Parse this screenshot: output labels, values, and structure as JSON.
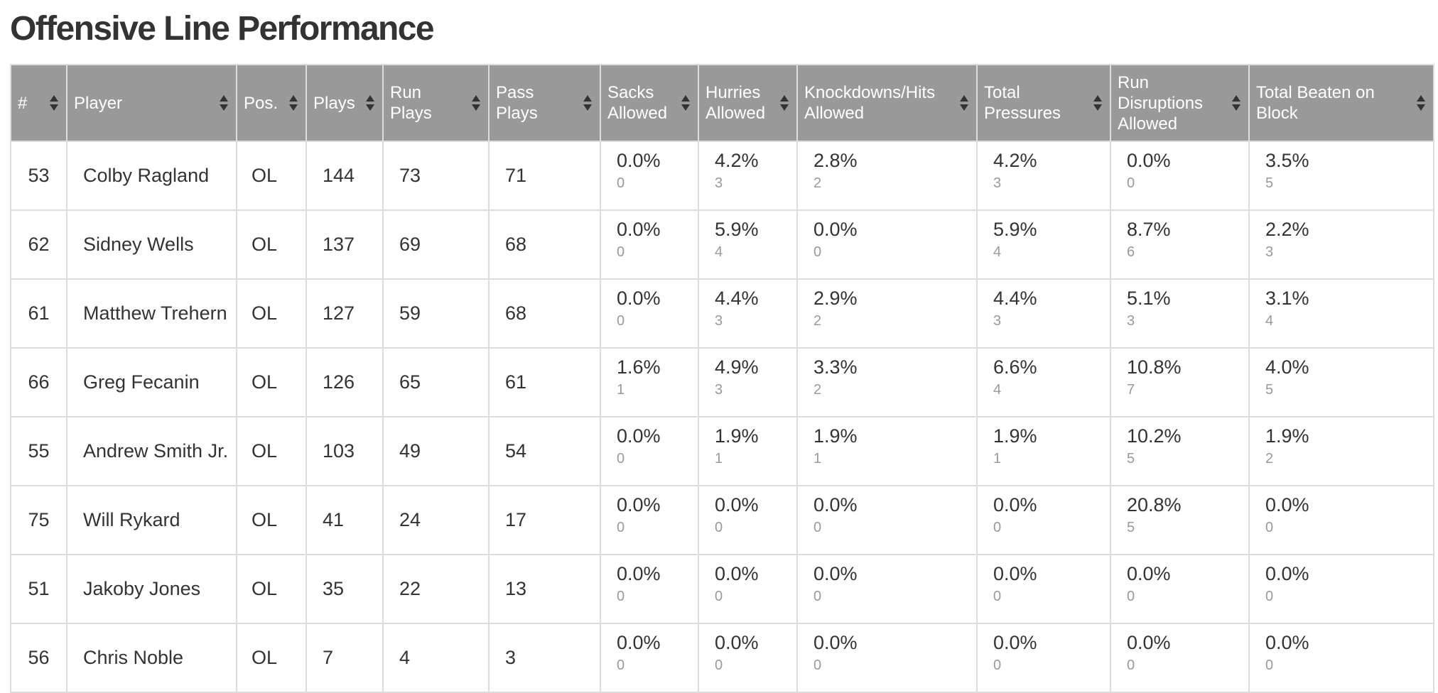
{
  "title": "Offensive Line Performance",
  "columns": [
    {
      "label": "#"
    },
    {
      "label": "Player"
    },
    {
      "label": "Pos."
    },
    {
      "label": "Plays"
    },
    {
      "label": "Run Plays"
    },
    {
      "label": "Pass Plays"
    },
    {
      "label": "Sacks Allowed"
    },
    {
      "label": "Hurries Allowed"
    },
    {
      "label": "Knockdowns/Hits Allowed"
    },
    {
      "label": "Total Pressures"
    },
    {
      "label": "Run Disruptions Allowed"
    },
    {
      "label": "Total Beaten on Block"
    }
  ],
  "rows": [
    {
      "num": "53",
      "player": "Colby Ragland",
      "pos": "OL",
      "plays": "144",
      "run": "73",
      "pass": "71",
      "stats": [
        {
          "pct": "0.0%",
          "count": "0"
        },
        {
          "pct": "4.2%",
          "count": "3"
        },
        {
          "pct": "2.8%",
          "count": "2"
        },
        {
          "pct": "4.2%",
          "count": "3"
        },
        {
          "pct": "0.0%",
          "count": "0"
        },
        {
          "pct": "3.5%",
          "count": "5"
        }
      ]
    },
    {
      "num": "62",
      "player": "Sidney Wells",
      "pos": "OL",
      "plays": "137",
      "run": "69",
      "pass": "68",
      "stats": [
        {
          "pct": "0.0%",
          "count": "0"
        },
        {
          "pct": "5.9%",
          "count": "4"
        },
        {
          "pct": "0.0%",
          "count": "0"
        },
        {
          "pct": "5.9%",
          "count": "4"
        },
        {
          "pct": "8.7%",
          "count": "6"
        },
        {
          "pct": "2.2%",
          "count": "3"
        }
      ]
    },
    {
      "num": "61",
      "player": "Matthew Trehern",
      "pos": "OL",
      "plays": "127",
      "run": "59",
      "pass": "68",
      "stats": [
        {
          "pct": "0.0%",
          "count": "0"
        },
        {
          "pct": "4.4%",
          "count": "3"
        },
        {
          "pct": "2.9%",
          "count": "2"
        },
        {
          "pct": "4.4%",
          "count": "3"
        },
        {
          "pct": "5.1%",
          "count": "3"
        },
        {
          "pct": "3.1%",
          "count": "4"
        }
      ]
    },
    {
      "num": "66",
      "player": "Greg Fecanin",
      "pos": "OL",
      "plays": "126",
      "run": "65",
      "pass": "61",
      "stats": [
        {
          "pct": "1.6%",
          "count": "1"
        },
        {
          "pct": "4.9%",
          "count": "3"
        },
        {
          "pct": "3.3%",
          "count": "2"
        },
        {
          "pct": "6.6%",
          "count": "4"
        },
        {
          "pct": "10.8%",
          "count": "7"
        },
        {
          "pct": "4.0%",
          "count": "5"
        }
      ]
    },
    {
      "num": "55",
      "player": "Andrew Smith Jr.",
      "pos": "OL",
      "plays": "103",
      "run": "49",
      "pass": "54",
      "stats": [
        {
          "pct": "0.0%",
          "count": "0"
        },
        {
          "pct": "1.9%",
          "count": "1"
        },
        {
          "pct": "1.9%",
          "count": "1"
        },
        {
          "pct": "1.9%",
          "count": "1"
        },
        {
          "pct": "10.2%",
          "count": "5"
        },
        {
          "pct": "1.9%",
          "count": "2"
        }
      ]
    },
    {
      "num": "75",
      "player": "Will Rykard",
      "pos": "OL",
      "plays": "41",
      "run": "24",
      "pass": "17",
      "stats": [
        {
          "pct": "0.0%",
          "count": "0"
        },
        {
          "pct": "0.0%",
          "count": "0"
        },
        {
          "pct": "0.0%",
          "count": "0"
        },
        {
          "pct": "0.0%",
          "count": "0"
        },
        {
          "pct": "20.8%",
          "count": "5"
        },
        {
          "pct": "0.0%",
          "count": "0"
        }
      ]
    },
    {
      "num": "51",
      "player": "Jakoby Jones",
      "pos": "OL",
      "plays": "35",
      "run": "22",
      "pass": "13",
      "stats": [
        {
          "pct": "0.0%",
          "count": "0"
        },
        {
          "pct": "0.0%",
          "count": "0"
        },
        {
          "pct": "0.0%",
          "count": "0"
        },
        {
          "pct": "0.0%",
          "count": "0"
        },
        {
          "pct": "0.0%",
          "count": "0"
        },
        {
          "pct": "0.0%",
          "count": "0"
        }
      ]
    },
    {
      "num": "56",
      "player": "Chris Noble",
      "pos": "OL",
      "plays": "7",
      "run": "4",
      "pass": "3",
      "stats": [
        {
          "pct": "0.0%",
          "count": "0"
        },
        {
          "pct": "0.0%",
          "count": "0"
        },
        {
          "pct": "0.0%",
          "count": "0"
        },
        {
          "pct": "0.0%",
          "count": "0"
        },
        {
          "pct": "0.0%",
          "count": "0"
        },
        {
          "pct": "0.0%",
          "count": "0"
        }
      ]
    }
  ]
}
